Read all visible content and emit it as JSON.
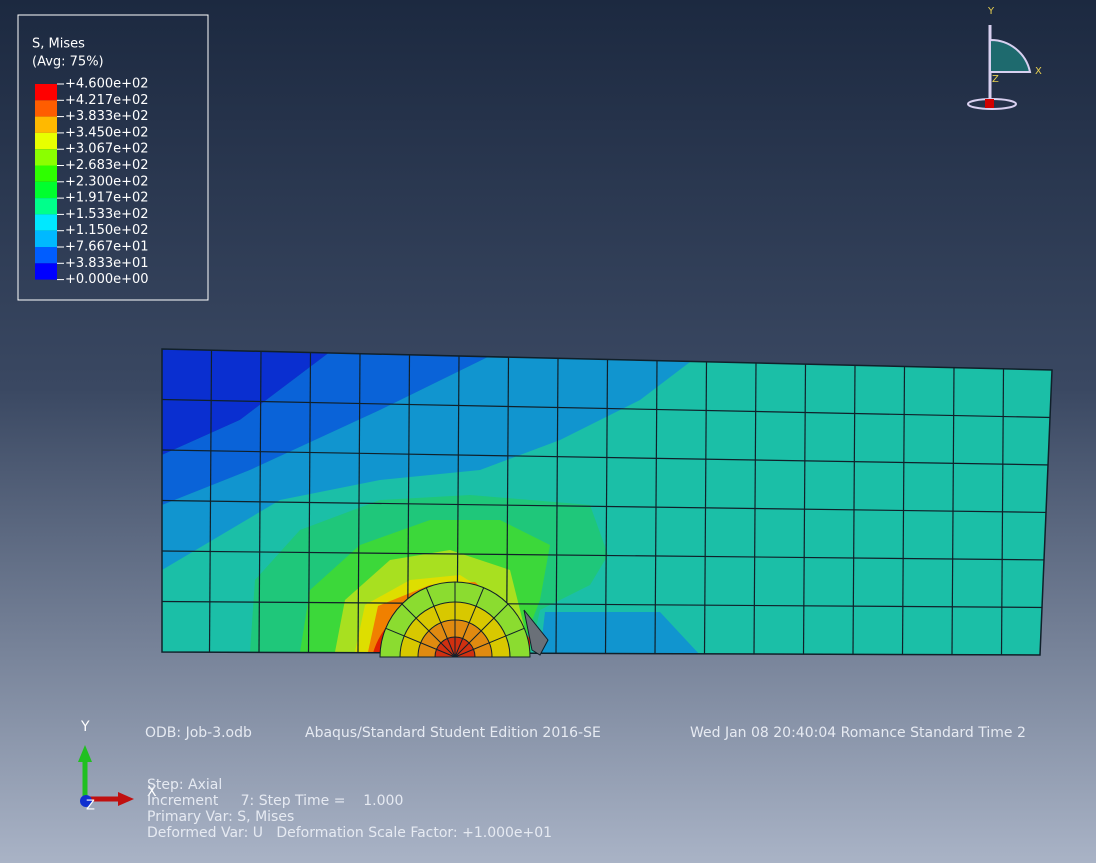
{
  "legend": {
    "title": "S, Mises",
    "subtitle": "(Avg: 75%)",
    "labels": [
      "+4.600e+02",
      "+4.217e+02",
      "+3.833e+02",
      "+3.450e+02",
      "+3.067e+02",
      "+2.683e+02",
      "+2.300e+02",
      "+1.917e+02",
      "+1.533e+02",
      "+1.150e+02",
      "+7.667e+01",
      "+3.833e+01",
      "+0.000e+00"
    ],
    "colors": [
      "#ff0000",
      "#ff5d00",
      "#ffb900",
      "#e8ff00",
      "#8bff00",
      "#2eff00",
      "#00ff2e",
      "#00ff8b",
      "#00e8ff",
      "#00b9ff",
      "#005dff",
      "#0000ff"
    ]
  },
  "info": {
    "odb": "ODB: Job-3.odb",
    "product": "Abaqus/Standard Student Edition 2016-SE",
    "date": "Wed Jan 08 20:40:04 Romance Standard Time 2",
    "step": "Step: Axial",
    "increment": "Increment     7: Step Time =    1.000",
    "primary_var": "Primary Var: S, Mises",
    "deformed_var": "Deformed Var: U   Deformation Scale Factor: +1.000e+01"
  },
  "triad": {
    "y": "Y",
    "x": "X",
    "z": "Z"
  },
  "view_cube": {
    "y": "Y",
    "x": "X",
    "z": "Z"
  }
}
